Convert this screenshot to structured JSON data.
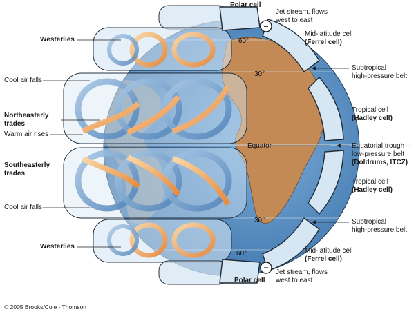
{
  "left_labels": {
    "westerlies_top": "Westerlies",
    "cool_air_falls_top": "Cool air falls",
    "northeasterly": [
      "Northeasterly",
      "trades"
    ],
    "warm_air_rises": "Warm air rises",
    "southeasterly": [
      "Southeasterly",
      "trades"
    ],
    "cool_air_falls_bottom": "Cool air falls",
    "westerlies_bottom": "Westerlies"
  },
  "top_labels": {
    "polar_cell": "Polar cell",
    "jet_stream": [
      "Jet stream, flows",
      "west to east"
    ]
  },
  "bottom_labels": {
    "polar_cell": "Polar cell",
    "jet_stream": [
      "Jet stream, flows",
      "west to east"
    ]
  },
  "right_labels": {
    "ferrel_top": [
      "Mid-latitude cell",
      "(Ferrel cell)"
    ],
    "subtropical_top": [
      "Subtropical",
      "high-pressure belt"
    ],
    "hadley_top": [
      "Tropical cell",
      "(Hadley cell)"
    ],
    "itcz": [
      "Equatorial trough—",
      "low-pressure belt",
      "(Doldrums, ITCZ)"
    ],
    "hadley_bottom": [
      "Tropical cell",
      "(Hadley cell)"
    ],
    "subtropical_bottom": [
      "Subtropical",
      "high-pressure belt"
    ],
    "ferrel_bottom": [
      "Mid-latitude cell",
      "(Ferrel cell)"
    ]
  },
  "globe_labels": {
    "lat_60_n": "60°",
    "lat_30_n": "30°",
    "equator": "Equator",
    "lat_30_s": "30°",
    "lat_60_s": "60°"
  },
  "jet_symbol": "−",
  "copyright": "© 2005 Brooks/Cole - Thomson",
  "colors": {
    "ocean": "#5f95c9",
    "land": "#c48a55",
    "cell_fill": "#d6e6f3",
    "cell_stroke": "#24313f",
    "warm_arrow": "#f2a35d",
    "cool_arrow": "#6d9ccb"
  }
}
